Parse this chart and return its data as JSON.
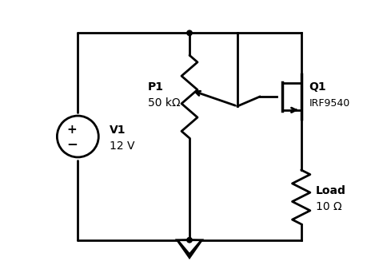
{
  "bg_color": "#ffffff",
  "line_color": "#000000",
  "line_width": 2.0,
  "font_size": 10,
  "labels": {
    "V1": "V1\n12 V",
    "P1": "P1\n50 kΩ",
    "Q1": "Q1\nIRF9540",
    "Load": "Load\n10 Ω"
  }
}
